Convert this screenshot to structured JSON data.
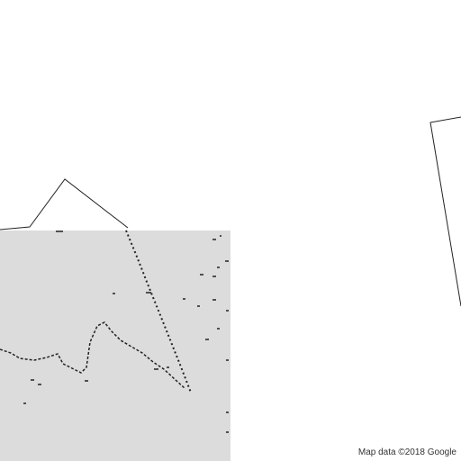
{
  "map": {
    "attribution": "Map data ©2018 Google",
    "colors": {
      "background": "#ffffff",
      "tile_fill": "#dcdcdc",
      "line": "#222222"
    }
  }
}
